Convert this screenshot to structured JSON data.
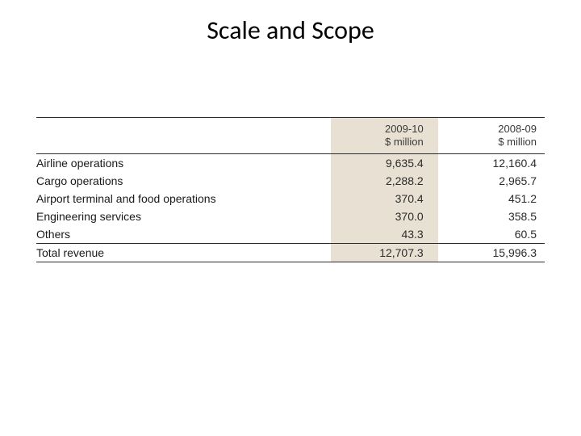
{
  "title": "Scale and Scope",
  "table": {
    "type": "table",
    "background_color": "#ffffff",
    "highlight_col_bg": "#e8e0d2",
    "border_color": "#2b2b2b",
    "header_font_size_pt": 10,
    "body_font_size_pt": 11,
    "columns": {
      "label": "",
      "cur_year": "2009-10",
      "cur_unit": "$ million",
      "prev_year": "2008-09",
      "prev_unit": "$ million"
    },
    "rows": [
      {
        "label": "Airline operations",
        "cur": "9,635.4",
        "prev": "12,160.4"
      },
      {
        "label": "Cargo operations",
        "cur": "2,288.2",
        "prev": "2,965.7"
      },
      {
        "label": "Airport terminal and food operations",
        "cur": "370.4",
        "prev": "451.2"
      },
      {
        "label": "Engineering services",
        "cur": "370.0",
        "prev": "358.5"
      },
      {
        "label": "Others",
        "cur": "43.3",
        "prev": "60.5"
      }
    ],
    "total": {
      "label": "Total revenue",
      "cur": "12,707.3",
      "prev": "15,996.3"
    }
  }
}
